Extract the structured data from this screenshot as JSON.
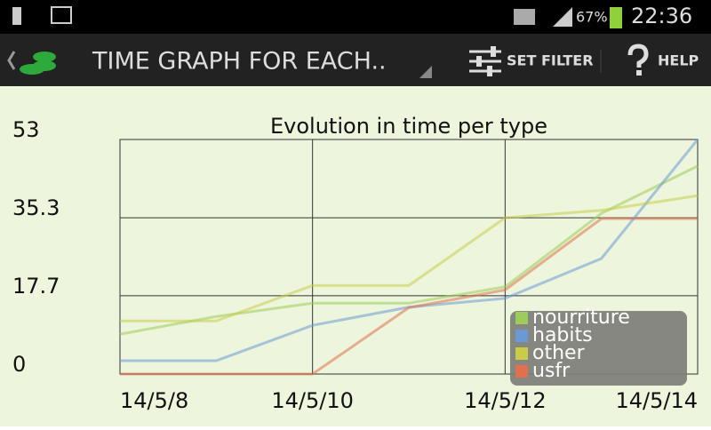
{
  "status_bar": {
    "battery": "67%",
    "time": "22:36"
  },
  "action_bar": {
    "title": "TIME GRAPH FOR EACH..",
    "filter": "SET FILTER",
    "help": "HELP"
  },
  "chart_data": {
    "type": "line",
    "title": "Evolution in time per type",
    "x": [
      8,
      9,
      10,
      11,
      12,
      13,
      14
    ],
    "xlim": [
      8,
      14
    ],
    "xticks": [
      {
        "value": 8,
        "label": "14/5/8"
      },
      {
        "value": 10,
        "label": "14/5/10"
      },
      {
        "value": 12,
        "label": "14/5/12"
      },
      {
        "value": 14,
        "label": "14/5/14"
      }
    ],
    "ylim": [
      0,
      53
    ],
    "yticks": [
      0,
      17.7,
      35.3,
      53
    ],
    "grid": true,
    "legend": "lower right",
    "series": [
      {
        "name": "nourriture",
        "color": "#9ccc5a",
        "values": [
          9,
          13,
          16,
          16,
          19.7,
          36.3,
          47
        ]
      },
      {
        "name": "habits",
        "color": "#6a9ad4",
        "values": [
          3,
          3,
          11,
          15.1,
          17.1,
          26.1,
          53
        ]
      },
      {
        "name": "other",
        "color": "#c8cc48",
        "values": [
          12,
          12,
          20,
          20,
          35.3,
          37,
          40.3
        ]
      },
      {
        "name": "usfr",
        "color": "#e0704e",
        "values": [
          0,
          0,
          0,
          15,
          19,
          35.1,
          35.1
        ]
      }
    ]
  }
}
